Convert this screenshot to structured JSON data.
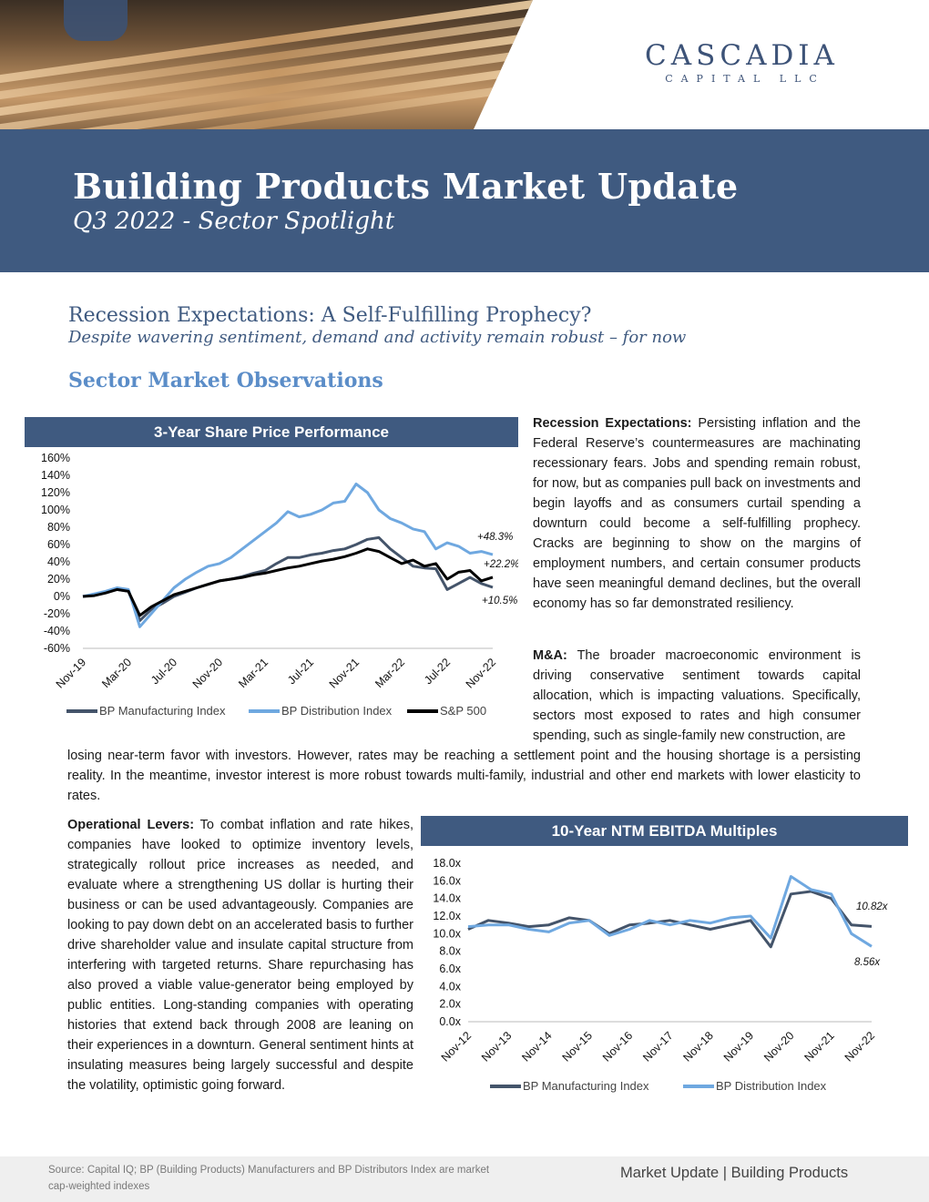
{
  "brand": {
    "name": "CASCADIA",
    "sub": "CAPITAL LLC",
    "color": "#3d5378"
  },
  "header": {
    "title": "Building Products Market Update",
    "subtitle": "Q3 2022 - Sector Spotlight",
    "band_color": "#3f5a80"
  },
  "article": {
    "headline": "Recession Expectations: A Self-Fulfilling Prophecy?",
    "subheadline": "Despite wavering sentiment, demand and activity remain robust – for now",
    "section_title": "Sector Market Observations"
  },
  "paragraphs": {
    "recession": {
      "lead": "Recession Expectations:",
      "text": " Persisting inflation and the Federal Reserve’s countermeasures are machinating recessionary fears. Jobs and spending remain robust, for now, but as companies pull back on investments and begin layoffs and as consumers curtail spending a downturn could become a self-fulfilling prophecy. Cracks are beginning to show on the margins of employment numbers, and certain consumer products have seen meaningful demand declines, but the overall economy has so far demonstrated resiliency."
    },
    "ma": {
      "lead": "M&A:",
      "text_a": " The broader macroeconomic environment is driving conservative sentiment towards capital allocation, which is impacting valuations. Specifically, sectors most exposed to rates and high consumer spending, such as single-family new construction, are",
      "text_b": "losing near-term favor with investors. However, rates may be reaching a settlement point and the housing shortage is a persisting reality. In the meantime, investor interest is more robust towards multi-family, industrial and other end markets with lower elasticity to rates."
    },
    "operational": {
      "lead": "Operational Levers:",
      "text": " To combat inflation and rate hikes, companies have looked to optimize inventory levels, strategically rollout price increases as needed, and evaluate where a strengthening US dollar is hurting their business or can be used advantageously. Companies are looking to pay down debt on an accelerated basis to further drive shareholder value and insulate capital structure from interfering with targeted returns. Share repurchasing has also proved a viable value-generator being employed by public entities. Long-standing companies with operating histories that extend back through 2008 are leaning on their experiences in a downturn. General sentiment hints at insulating measures being largely successful and despite the volatility, optimistic going forward."
    }
  },
  "chart_data": [
    {
      "type": "line",
      "title": "3-Year Share Price Performance",
      "y_ticks": [
        "160%",
        "140%",
        "120%",
        "100%",
        "80%",
        "60%",
        "40%",
        "20%",
        "0%",
        "-20%",
        "-40%",
        "-60%"
      ],
      "ylim": [
        -60,
        160
      ],
      "x_ticks": [
        "Nov-19",
        "Mar-20",
        "Jul-20",
        "Nov-20",
        "Mar-21",
        "Jul-21",
        "Nov-21",
        "Mar-22",
        "Jul-22",
        "Nov-22"
      ],
      "x": [
        0,
        1,
        2,
        3,
        4,
        5,
        6,
        7,
        8,
        9,
        10,
        11,
        12,
        13,
        14,
        15,
        16,
        17,
        18,
        19,
        20,
        21,
        22,
        23,
        24,
        25,
        26,
        27,
        28,
        29,
        30,
        31,
        32,
        33,
        34,
        35,
        36
      ],
      "series": [
        {
          "name": "BP Manufacturing Index",
          "color": "#44546a",
          "values": [
            0,
            2,
            5,
            8,
            6,
            -28,
            -15,
            -8,
            0,
            5,
            10,
            14,
            18,
            20,
            23,
            27,
            30,
            38,
            45,
            45,
            48,
            50,
            53,
            55,
            60,
            66,
            68,
            55,
            45,
            35,
            33,
            32,
            8,
            15,
            22,
            15,
            10.5
          ]
        },
        {
          "name": "BP Distribution Index",
          "color": "#6fa8e0",
          "values": [
            0,
            3,
            6,
            10,
            8,
            -35,
            -20,
            -5,
            10,
            20,
            28,
            35,
            38,
            45,
            55,
            65,
            75,
            85,
            98,
            92,
            95,
            100,
            108,
            110,
            130,
            120,
            100,
            90,
            85,
            78,
            75,
            55,
            62,
            58,
            50,
            52,
            48.3
          ]
        },
        {
          "name": "S&P 500",
          "color": "#000000",
          "values": [
            0,
            1,
            4,
            8,
            6,
            -22,
            -12,
            -5,
            2,
            6,
            10,
            14,
            18,
            20,
            22,
            25,
            27,
            30,
            33,
            35,
            38,
            41,
            43,
            46,
            50,
            55,
            52,
            45,
            38,
            42,
            35,
            38,
            20,
            28,
            30,
            18,
            22.2
          ]
        }
      ],
      "annotations": [
        "+48.3%",
        "+22.2%",
        "+10.5%"
      ]
    },
    {
      "type": "line",
      "title": "10-Year NTM EBITDA Multiples",
      "y_ticks": [
        "18.0x",
        "16.0x",
        "14.0x",
        "12.0x",
        "10.0x",
        "8.0x",
        "6.0x",
        "4.0x",
        "2.0x",
        "0.0x"
      ],
      "ylim": [
        0,
        18
      ],
      "x_ticks": [
        "Nov-12",
        "Nov-13",
        "Nov-14",
        "Nov-15",
        "Nov-16",
        "Nov-17",
        "Nov-18",
        "Nov-19",
        "Nov-20",
        "Nov-21",
        "Nov-22"
      ],
      "x": [
        0,
        1,
        2,
        3,
        4,
        5,
        6,
        7,
        8,
        9,
        10,
        11,
        12,
        13,
        14,
        15,
        16,
        17,
        18,
        19,
        20
      ],
      "series": [
        {
          "name": "BP Manufacturing Index",
          "color": "#44546a",
          "values": [
            10.5,
            11.5,
            11.2,
            10.8,
            11.0,
            11.8,
            11.5,
            10.0,
            11.0,
            11.2,
            11.5,
            11.0,
            10.5,
            11.0,
            11.5,
            8.5,
            14.5,
            14.8,
            14.0,
            11.0,
            10.82
          ]
        },
        {
          "name": "BP Distribution Index",
          "color": "#6fa8e0",
          "values": [
            10.8,
            11.0,
            11.0,
            10.5,
            10.2,
            11.2,
            11.5,
            9.8,
            10.5,
            11.5,
            11.0,
            11.5,
            11.2,
            11.8,
            12.0,
            9.5,
            16.5,
            15.0,
            14.5,
            10.0,
            8.56
          ]
        }
      ],
      "annotations": [
        "10.82x",
        "8.56x"
      ]
    }
  ],
  "footer": {
    "source": "Source: Capital IQ; BP (Building Products) Manufacturers and BP Distributors Index are market cap-weighted indexes",
    "section": "Market Update | Building Products"
  }
}
